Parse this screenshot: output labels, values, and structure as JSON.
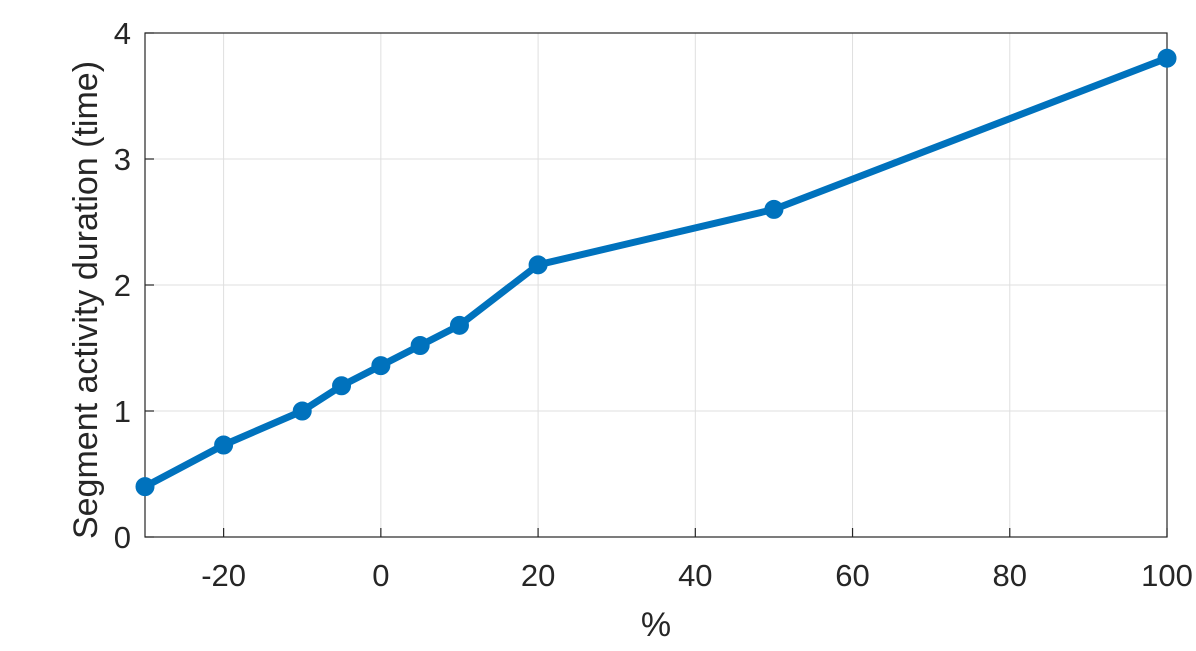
{
  "chart_data": {
    "type": "line",
    "title": "",
    "xlabel": "%",
    "ylabel": "Segment activity duration (time)",
    "xlim": [
      -30,
      100
    ],
    "ylim": [
      0,
      4
    ],
    "xticks": [
      -20,
      0,
      20,
      40,
      60,
      80,
      100
    ],
    "xtick_labels": [
      "-20",
      "0",
      "20",
      "40",
      "60",
      "80",
      "100"
    ],
    "yticks": [
      0,
      1,
      2,
      3,
      4
    ],
    "ytick_labels": [
      "0",
      "1",
      "2",
      "3",
      "4"
    ],
    "grid": true,
    "series": [
      {
        "color": "#0072BD",
        "marker": "circle",
        "x": [
          -30,
          -20,
          -10,
          -5,
          0,
          5,
          10,
          20,
          50,
          100
        ],
        "y": [
          0.4,
          0.73,
          1.0,
          1.2,
          1.36,
          1.52,
          1.68,
          2.16,
          2.6,
          3.8
        ]
      }
    ]
  }
}
